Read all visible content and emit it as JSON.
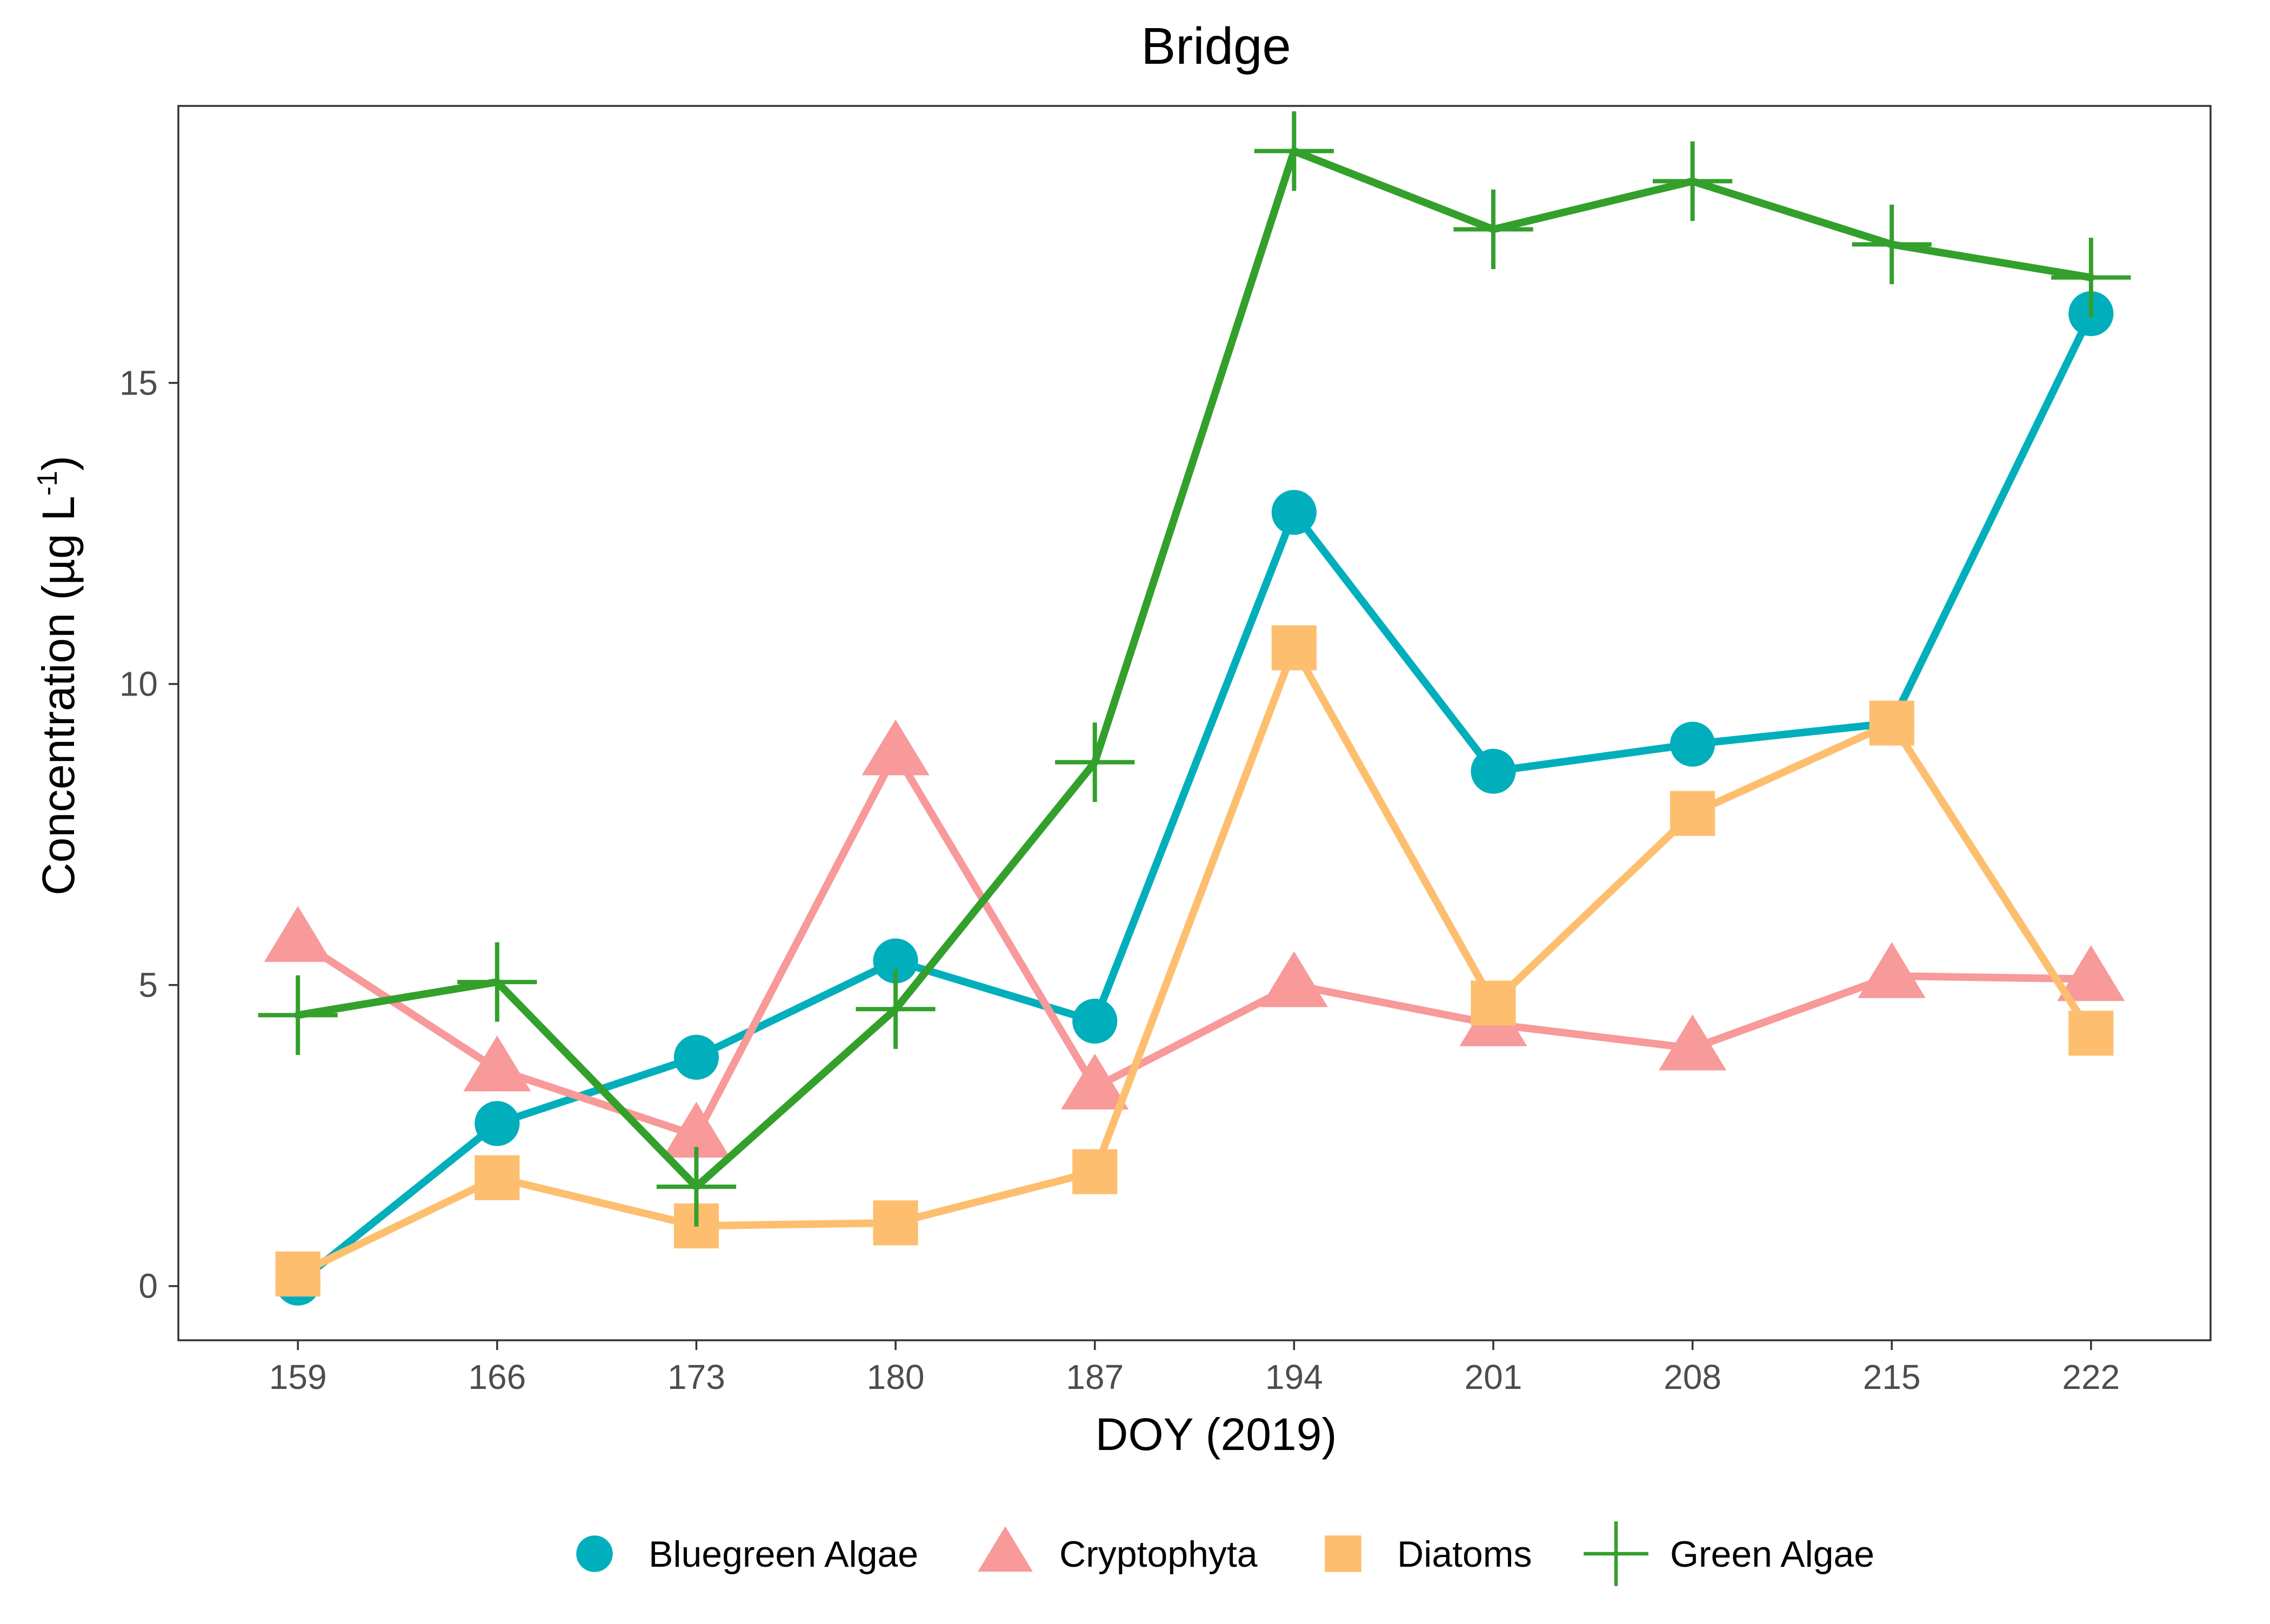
{
  "chart_data": {
    "type": "line",
    "title": "Bridge",
    "xlabel": "DOY (2019)",
    "ylabel_main": "Concentration (µg L",
    "ylabel_sup": "-1",
    "ylabel_close": ")",
    "x": [
      159,
      166,
      173,
      180,
      187,
      194,
      201,
      208,
      215,
      222
    ],
    "x_ticks": [
      "159",
      "166",
      "173",
      "180",
      "187",
      "194",
      "201",
      "208",
      "215",
      "222"
    ],
    "y_ticks": [
      0,
      5,
      10,
      15
    ],
    "y_tick_labels": [
      "0",
      "5",
      "10",
      "15"
    ],
    "xlim": [
      154.8,
      226.2
    ],
    "ylim": [
      -0.9,
      19.6
    ],
    "grid": false,
    "legend_position": "bottom",
    "series": [
      {
        "name": "Bluegreen Algae",
        "color": "#00AFBB",
        "marker": "circle",
        "values": [
          0.05,
          2.7,
          3.8,
          5.4,
          4.4,
          12.85,
          8.55,
          9.0,
          9.35,
          16.15
        ]
      },
      {
        "name": "Cryptophyta",
        "color": "#F8999A",
        "marker": "triangle",
        "values": [
          5.75,
          3.6,
          2.5,
          8.85,
          3.3,
          5.0,
          4.35,
          3.95,
          5.15,
          5.1
        ]
      },
      {
        "name": "Diatoms",
        "color": "#FDBF6F",
        "marker": "square",
        "values": [
          0.2,
          1.8,
          1.0,
          1.05,
          1.9,
          10.6,
          4.7,
          7.85,
          9.35,
          4.2
        ]
      },
      {
        "name": "Green Algae",
        "color": "#33A02C",
        "marker": "plus",
        "values": [
          4.5,
          5.05,
          1.65,
          4.6,
          8.7,
          18.85,
          17.55,
          18.35,
          17.3,
          16.75
        ]
      }
    ]
  }
}
